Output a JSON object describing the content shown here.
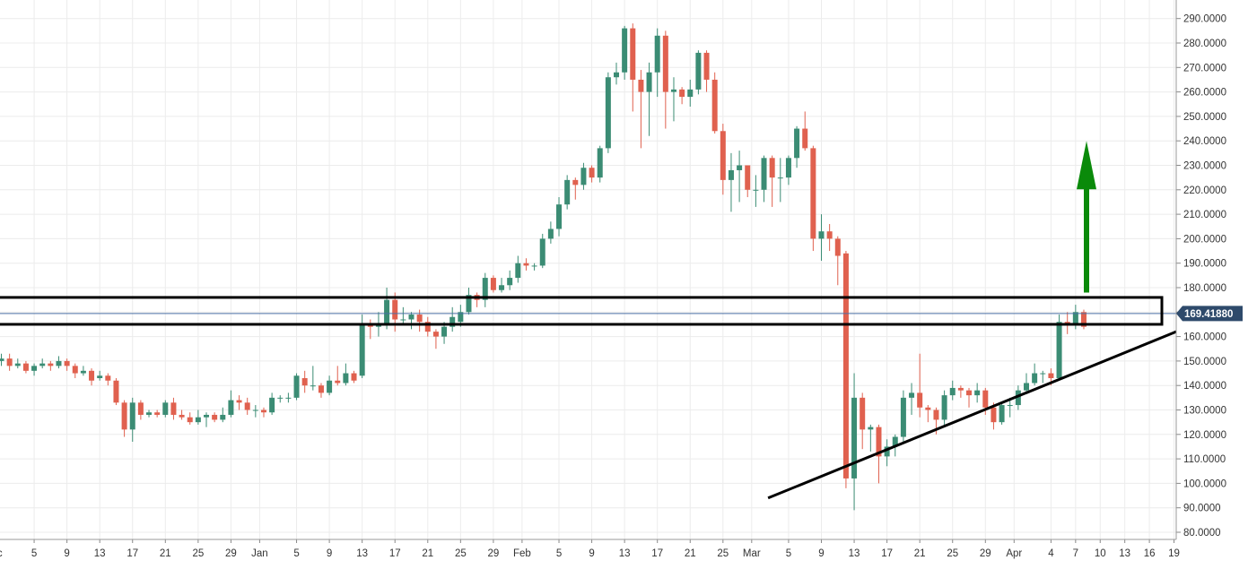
{
  "chart_data": {
    "type": "candlestick",
    "title": "",
    "xlabel": "",
    "ylabel": "",
    "ylim": [
      77,
      294
    ],
    "y_ticks": [
      "290.0000",
      "280.0000",
      "270.0000",
      "260.0000",
      "250.0000",
      "240.0000",
      "230.0000",
      "220.0000",
      "210.0000",
      "200.0000",
      "190.0000",
      "180.0000",
      "170.0000",
      "160.0000",
      "150.0000",
      "140.0000",
      "130.0000",
      "120.0000",
      "110.0000",
      "100.0000",
      "90.0000",
      "80.0000"
    ],
    "x_ticks": [
      "Dec",
      "5",
      "9",
      "13",
      "17",
      "21",
      "25",
      "29",
      "Jan",
      "5",
      "9",
      "13",
      "17",
      "21",
      "25",
      "29",
      "Feb",
      "5",
      "9",
      "13",
      "17",
      "21",
      "25",
      "Mar",
      "5",
      "9",
      "13",
      "17",
      "21",
      "25",
      "29",
      "Apr",
      "4",
      "7",
      "10",
      "13",
      "16",
      "19"
    ],
    "grid": true,
    "current_price": "169.41880",
    "colors": {
      "up": "#3b8c74",
      "down": "#e0614f",
      "arrow": "#0a8a0a",
      "tag": "#2e4a6b",
      "grid": "#ececec",
      "lines": "#000000"
    },
    "annotations": {
      "resistance_zone": [
        165,
        176
      ],
      "trendline": {
        "from": [
          93.5,
          94
        ],
        "to": [
          147.5,
          162
        ]
      },
      "arrow": {
        "x": 148,
        "from": 178,
        "to": 240
      }
    },
    "candles": [
      [
        -1,
        153,
        150,
        155,
        148
      ],
      [
        0,
        150,
        151,
        153,
        148
      ],
      [
        1,
        151,
        148,
        153,
        146
      ],
      [
        2,
        148,
        149,
        151,
        147
      ],
      [
        3,
        149,
        146,
        150,
        145
      ],
      [
        4,
        146,
        148,
        149,
        144
      ],
      [
        5,
        148,
        149,
        151,
        147
      ],
      [
        6,
        149,
        148,
        150,
        146
      ],
      [
        7,
        148,
        150,
        152,
        147
      ],
      [
        8,
        150,
        148,
        151,
        146
      ],
      [
        9,
        148,
        145,
        149,
        143
      ],
      [
        10,
        145,
        146,
        148,
        144
      ],
      [
        11,
        146,
        142,
        147,
        140
      ],
      [
        12,
        143,
        144,
        146,
        142
      ],
      [
        13,
        144,
        142,
        145,
        140
      ],
      [
        14,
        142,
        133,
        143,
        132
      ],
      [
        15,
        133,
        122,
        134,
        119
      ],
      [
        16,
        122,
        133,
        135,
        117
      ],
      [
        17,
        133,
        128,
        134,
        126
      ],
      [
        18,
        128,
        129,
        130,
        127
      ],
      [
        19,
        129,
        128,
        130,
        127
      ],
      [
        20,
        128,
        133,
        134,
        127
      ],
      [
        21,
        133,
        128,
        135,
        126
      ],
      [
        22,
        128,
        127,
        130,
        126
      ],
      [
        23,
        127,
        125,
        129,
        124
      ],
      [
        24,
        125,
        127,
        130,
        124
      ],
      [
        25,
        127,
        128,
        129,
        123
      ],
      [
        26,
        128,
        126,
        129,
        125
      ],
      [
        27,
        126,
        128,
        131,
        125
      ],
      [
        28,
        128,
        134,
        138,
        127
      ],
      [
        29,
        134,
        133,
        136,
        130
      ],
      [
        30,
        133,
        130,
        135,
        128
      ],
      [
        31,
        130,
        130,
        132,
        127
      ],
      [
        32,
        130,
        129,
        131,
        127
      ],
      [
        33,
        129,
        135,
        137,
        128
      ],
      [
        34,
        135,
        135,
        136,
        133
      ],
      [
        35,
        135,
        135,
        137,
        133
      ],
      [
        36,
        135,
        144,
        145,
        134
      ],
      [
        37,
        143,
        140,
        146,
        137
      ],
      [
        38,
        140,
        140,
        148,
        138
      ],
      [
        39,
        140,
        137,
        141,
        135
      ],
      [
        40,
        137,
        142,
        144,
        136
      ],
      [
        41,
        142,
        141,
        148,
        140
      ],
      [
        42,
        141,
        145,
        149,
        140
      ],
      [
        43,
        145,
        142,
        146,
        141
      ],
      [
        44,
        144,
        165,
        169,
        143
      ],
      [
        45,
        165,
        164,
        167,
        159
      ],
      [
        46,
        164,
        165,
        170,
        160
      ],
      [
        47,
        165,
        175,
        180,
        163
      ],
      [
        48,
        175,
        167,
        178,
        162
      ],
      [
        49,
        167,
        167,
        172,
        165
      ],
      [
        50,
        167,
        169,
        170,
        163
      ],
      [
        51,
        169,
        166,
        171,
        162
      ],
      [
        52,
        166,
        162,
        168,
        160
      ],
      [
        53,
        162,
        160,
        163,
        155
      ],
      [
        54,
        160,
        164,
        166,
        157
      ],
      [
        55,
        164,
        168,
        172,
        162
      ],
      [
        56,
        166,
        170,
        173,
        164
      ],
      [
        57,
        170,
        177,
        180,
        169
      ],
      [
        58,
        177,
        175,
        178,
        172
      ],
      [
        59,
        175,
        184,
        186,
        172
      ],
      [
        60,
        184,
        179,
        185,
        178
      ],
      [
        61,
        179,
        181,
        184,
        178
      ],
      [
        62,
        181,
        184,
        187,
        179
      ],
      [
        63,
        184,
        190,
        193,
        182
      ],
      [
        64,
        190,
        189,
        192,
        187
      ],
      [
        65,
        189,
        189,
        190,
        187
      ],
      [
        66,
        189,
        200,
        202,
        188
      ],
      [
        67,
        200,
        204,
        207,
        198
      ],
      [
        68,
        204,
        214,
        217,
        201
      ],
      [
        69,
        214,
        224,
        226,
        212
      ],
      [
        70,
        224,
        222,
        225,
        216
      ],
      [
        71,
        222,
        229,
        231,
        220
      ],
      [
        72,
        229,
        225,
        230,
        223
      ],
      [
        73,
        225,
        237,
        238,
        223
      ],
      [
        74,
        237,
        266,
        268,
        235
      ],
      [
        75,
        266,
        268,
        272,
        263
      ],
      [
        76,
        268,
        286,
        287,
        265
      ],
      [
        77,
        286,
        265,
        288,
        252
      ],
      [
        78,
        265,
        260,
        269,
        237
      ],
      [
        79,
        260,
        268,
        272,
        242
      ],
      [
        80,
        268,
        283,
        286,
        258
      ],
      [
        81,
        283,
        260,
        285,
        245
      ],
      [
        82,
        260,
        261,
        266,
        248
      ],
      [
        83,
        261,
        258,
        262,
        255
      ],
      [
        84,
        258,
        261,
        265,
        254
      ],
      [
        85,
        261,
        276,
        277,
        259
      ],
      [
        86,
        276,
        265,
        277,
        260
      ],
      [
        87,
        265,
        244,
        268,
        243
      ],
      [
        88,
        244,
        224,
        247,
        218
      ],
      [
        89,
        224,
        228,
        235,
        211
      ],
      [
        90,
        228,
        230,
        236,
        215
      ],
      [
        91,
        230,
        220,
        230,
        217
      ],
      [
        92,
        220,
        220,
        226,
        213
      ],
      [
        93,
        220,
        233,
        234,
        215
      ],
      [
        94,
        233,
        225,
        234,
        213
      ],
      [
        95,
        225,
        225,
        233,
        215
      ],
      [
        96,
        225,
        233,
        234,
        222
      ],
      [
        97,
        233,
        245,
        246,
        229
      ],
      [
        98,
        245,
        237,
        252,
        236
      ],
      [
        99,
        237,
        200,
        238,
        195
      ],
      [
        100,
        200,
        203,
        210,
        191
      ],
      [
        101,
        203,
        200,
        206,
        195
      ],
      [
        102,
        200,
        193,
        201,
        181
      ],
      [
        103,
        194,
        102,
        195,
        98
      ],
      [
        104,
        102,
        135,
        145,
        89
      ],
      [
        105,
        135,
        122,
        137,
        114
      ],
      [
        106,
        122,
        123,
        124,
        113
      ],
      [
        107,
        123,
        111,
        124,
        100
      ],
      [
        108,
        111,
        115,
        118,
        107
      ],
      [
        109,
        115,
        119,
        120,
        111
      ],
      [
        110,
        119,
        135,
        138,
        117
      ],
      [
        111,
        135,
        137,
        141,
        128
      ],
      [
        112,
        137,
        131,
        153,
        127
      ],
      [
        113,
        131,
        130,
        132,
        125
      ],
      [
        114,
        130,
        126,
        131,
        120
      ],
      [
        115,
        126,
        136,
        138,
        123
      ],
      [
        116,
        136,
        139,
        142,
        134
      ],
      [
        117,
        139,
        138,
        140,
        135
      ],
      [
        118,
        138,
        136,
        139,
        131
      ],
      [
        119,
        136,
        138,
        141,
        133
      ],
      [
        120,
        138,
        131,
        139,
        128
      ],
      [
        121,
        131,
        125,
        133,
        122
      ],
      [
        122,
        125,
        132,
        133,
        124
      ],
      [
        123,
        132,
        132,
        135,
        127
      ],
      [
        124,
        132,
        138,
        140,
        130
      ],
      [
        125,
        138,
        141,
        145,
        137
      ],
      [
        126,
        141,
        145,
        149,
        140
      ],
      [
        127,
        145,
        145,
        146,
        141
      ],
      [
        128,
        145,
        143,
        147,
        140
      ],
      [
        129,
        143,
        166,
        169,
        142
      ],
      [
        130,
        166,
        165,
        170,
        161
      ],
      [
        131,
        165,
        170,
        173,
        163
      ],
      [
        132,
        170,
        164,
        171,
        163
      ]
    ]
  },
  "series_labels": {
    "up": "",
    "down": ""
  }
}
